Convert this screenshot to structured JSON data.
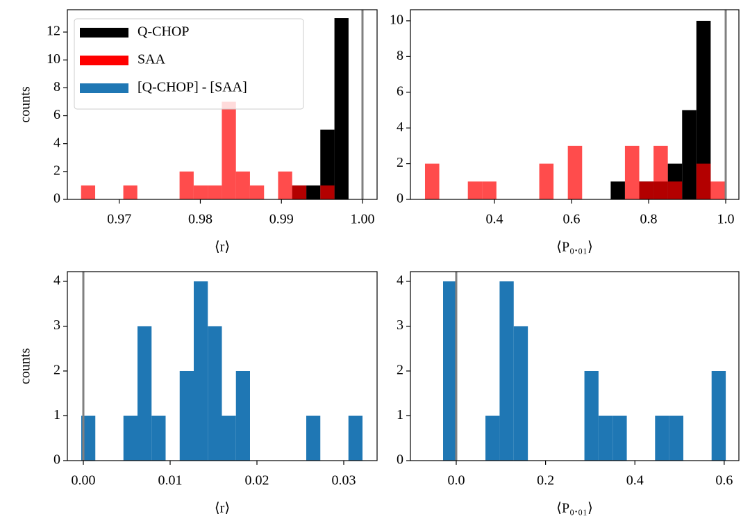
{
  "chart_data": [
    {
      "type": "histogram",
      "x_label": "⟨r⟩",
      "y_label": "counts",
      "legend": "upper left",
      "vline": 1.0,
      "vline_color": "#808080",
      "xlim": [
        0.9636,
        1.0018
      ],
      "ylim": [
        0,
        13.6
      ],
      "xticks": [
        0.97,
        0.98,
        0.99,
        {
          "value": 1.0,
          "label": "1.00"
        }
      ],
      "yticks": [
        0,
        2,
        4,
        6,
        8,
        10,
        12
      ],
      "series": [
        {
          "name": "Q-CHOP",
          "color": "#000000",
          "alpha": 1,
          "bins": [
            0.99133,
            0.99307,
            0.9948,
            0.99654,
            0.99828
          ],
          "values": [
            1,
            1,
            5,
            13
          ]
        },
        {
          "name": "SAA",
          "color": "#ff0000",
          "alpha": 0.7,
          "bins": [
            0.96529,
            0.96703,
            0.96876,
            0.9705,
            0.97223,
            0.97397,
            0.97571,
            0.97744,
            0.97918,
            0.98091,
            0.98265,
            0.98439,
            0.98612,
            0.98786,
            0.98959,
            0.99133,
            0.99307,
            0.9948,
            0.99654
          ],
          "values": [
            1,
            0,
            0,
            1,
            0,
            0,
            0,
            2,
            1,
            1,
            7,
            2,
            1,
            0,
            2,
            1,
            0,
            1
          ]
        }
      ]
    },
    {
      "type": "histogram",
      "x_label": "⟨P₀.₀₁⟩",
      "vline": 1.0,
      "vline_color": "#808080",
      "xlim": [
        0.182,
        1.0342
      ],
      "ylim": [
        0,
        10.62
      ],
      "xticks": [
        0.4,
        0.6,
        0.8,
        {
          "value": 1.0,
          "label": "1.0"
        }
      ],
      "yticks": [
        0,
        2,
        4,
        6,
        8,
        10
      ],
      "series": [
        {
          "color": "#000000",
          "alpha": 1,
          "bins": [
            0.7016,
            0.7386,
            0.7757,
            0.8128,
            0.8498,
            0.8869,
            0.9239,
            0.961
          ],
          "values": [
            1,
            0,
            1,
            1,
            2,
            5,
            10
          ]
        },
        {
          "color": "#ff0000",
          "alpha": 0.7,
          "bins": [
            0.2198,
            0.2569,
            0.2939,
            0.331,
            0.368,
            0.4051,
            0.4422,
            0.4792,
            0.5163,
            0.5533,
            0.5904,
            0.6275,
            0.6645,
            0.7016,
            0.7386,
            0.7757,
            0.8128,
            0.8498,
            0.8869,
            0.9239,
            0.961,
            0.9981
          ],
          "values": [
            2,
            0,
            0,
            1,
            1,
            0,
            0,
            0,
            2,
            0,
            3,
            0,
            0,
            0,
            3,
            1,
            3,
            1,
            0,
            2,
            1
          ]
        }
      ]
    },
    {
      "type": "histogram",
      "x_label": "⟨r⟩",
      "y_label": "counts",
      "vline": 0,
      "vline_color": "#808080",
      "xlim": [
        -0.00184,
        0.03384
      ],
      "ylim": [
        0,
        4.217
      ],
      "xticks": [
        {
          "value": 0,
          "label": "0.00"
        },
        0.01,
        0.02,
        0.03
      ],
      "yticks": [
        0,
        1,
        2,
        3,
        4
      ],
      "series": [
        {
          "name": "[Q-CHOP] - [SAA]",
          "color": "#1f77b4",
          "alpha": 1,
          "bins": [
            -0.00024,
            0.00138,
            0.003,
            0.00462,
            0.00624,
            0.00786,
            0.00948,
            0.0111,
            0.01272,
            0.01434,
            0.01596,
            0.01758,
            0.0192,
            0.02082,
            0.02244,
            0.02406,
            0.02568,
            0.0273,
            0.02892,
            0.03054,
            0.03216
          ],
          "values": [
            1,
            0,
            0,
            1,
            3,
            1,
            0,
            2,
            4,
            3,
            1,
            2,
            0,
            0,
            0,
            0,
            1,
            0,
            0,
            1
          ]
        }
      ]
    },
    {
      "type": "histogram",
      "x_label": "⟨P₀.₀₁⟩",
      "vline": 0,
      "vline_color": "#808080",
      "xlim": [
        -0.1026,
        0.6329
      ],
      "ylim": [
        0,
        4.217
      ],
      "xticks": [
        {
          "value": 0,
          "label": "0.0"
        },
        0.2,
        0.4,
        0.6
      ],
      "yticks": [
        0,
        1,
        2,
        3,
        4
      ],
      "series": [
        {
          "color": "#1f77b4",
          "alpha": 1,
          "bins": [
            -0.0295,
            0.0021,
            0.0338,
            0.0654,
            0.0971,
            0.1287,
            0.1604,
            0.192,
            0.2237,
            0.2553,
            0.287,
            0.3186,
            0.3503,
            0.3819,
            0.4136,
            0.4452,
            0.4769,
            0.5085,
            0.5402,
            0.5718,
            0.6035
          ],
          "values": [
            4,
            0,
            0,
            1,
            4,
            3,
            0,
            0,
            0,
            0,
            2,
            1,
            1,
            0,
            0,
            1,
            1,
            0,
            0,
            2
          ]
        }
      ]
    }
  ]
}
